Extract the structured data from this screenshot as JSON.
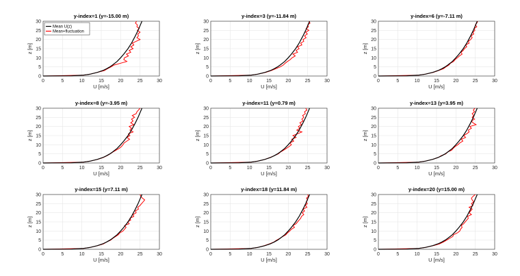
{
  "chart_data": {
    "type": "line",
    "layout": "3x3 grid",
    "grid": true,
    "legend": {
      "placement": "top-left",
      "panel": 0,
      "entries": [
        "Mean U(z)",
        "Mean+fluctuation"
      ]
    },
    "colors": {
      "mean": "#000000",
      "fluctuation": "#ff0000"
    },
    "xlabel": "U [m/s]",
    "ylabel": "z [m]",
    "xlim": [
      0,
      30
    ],
    "ylim": [
      0,
      30
    ],
    "xticks": [
      0,
      5,
      10,
      15,
      20,
      25,
      30
    ],
    "yticks": [
      0,
      5,
      10,
      15,
      20,
      25,
      30
    ],
    "mean_profile": {
      "z": [
        0,
        0.1,
        0.5,
        1,
        2,
        3,
        4,
        5,
        6,
        8,
        10,
        12,
        15,
        18,
        20,
        22,
        25,
        28,
        30
      ],
      "U": [
        0,
        7.3,
        10.4,
        12.1,
        14.0,
        15.4,
        16.4,
        17.2,
        17.9,
        19.1,
        20.0,
        20.8,
        21.9,
        22.8,
        23.3,
        23.8,
        24.5,
        25.1,
        25.5
      ]
    },
    "fluct_z": [
      0,
      0.5,
      1,
      2,
      3,
      4,
      5,
      6,
      7,
      8,
      9,
      10,
      11,
      12,
      13,
      14,
      15,
      16,
      17,
      18,
      19,
      20,
      21,
      22,
      23,
      24,
      25,
      26,
      27,
      28,
      29,
      30
    ],
    "panels": [
      {
        "title": "y-index=1 (y=-15.00 m)",
        "U": [
          0,
          10.4,
          12.1,
          14.0,
          15.8,
          16.6,
          17.5,
          18.3,
          20.0,
          21.6,
          20.8,
          21.0,
          22.0,
          21.5,
          22.6,
          22.2,
          23.2,
          22.6,
          23.4,
          23.0,
          24.0,
          25.0,
          24.2,
          24.6,
          24.4,
          25.0,
          24.3,
          24.8,
          24.2,
          24.3,
          23.8,
          24.1
        ]
      },
      {
        "title": "y-index=3 (y=-11.84 m)",
        "U": [
          0,
          10.4,
          12.1,
          14.2,
          15.6,
          16.8,
          17.9,
          18.7,
          19.2,
          19.8,
          20.5,
          21.0,
          21.8,
          21.2,
          22.4,
          22.0,
          22.8,
          22.4,
          23.5,
          23.2,
          24.0,
          23.8,
          24.6,
          24.2,
          24.9,
          24.5,
          25.3,
          24.6,
          25.2,
          25.0,
          25.6,
          25.3
        ]
      },
      {
        "title": "y-index=6 (y=-7.11 m)",
        "U": [
          0,
          10.4,
          12.1,
          14.2,
          15.5,
          16.8,
          17.4,
          18.2,
          18.6,
          19.4,
          19.8,
          20.4,
          20.9,
          21.6,
          21.3,
          21.9,
          22.2,
          22.8,
          22.5,
          23.4,
          23.2,
          23.8,
          24.2,
          23.9,
          24.6,
          24.4,
          24.9,
          24.7,
          25.4,
          25.0,
          25.4,
          25.6
        ]
      },
      {
        "title": "y-index=8 (y=-3.95 m)",
        "U": [
          0,
          10.4,
          12.1,
          14.1,
          15.5,
          16.5,
          17.3,
          18.0,
          18.8,
          19.6,
          20.2,
          20.6,
          20.9,
          21.6,
          22.3,
          21.6,
          22.4,
          22.0,
          23.2,
          22.4,
          22.8,
          22.2,
          23.4,
          22.6,
          23.2,
          22.8,
          23.6,
          23.0,
          24.0,
          24.2,
          24.6,
          25.0
        ]
      },
      {
        "title": "y-index=11 (y=0.79 m)",
        "U": [
          0,
          10.4,
          12.1,
          14.0,
          15.3,
          16.4,
          17.4,
          18.0,
          18.8,
          19.5,
          20.2,
          20.8,
          20.4,
          21.4,
          20.9,
          22.0,
          21.2,
          22.4,
          23.5,
          22.2,
          23.0,
          22.6,
          23.4,
          23.0,
          23.8,
          23.5,
          24.0,
          23.7,
          24.4,
          24.2,
          24.8,
          24.5
        ]
      },
      {
        "title": "y-index=13 (y=3.95 m)",
        "U": [
          0,
          10.4,
          12.1,
          14.0,
          15.4,
          16.2,
          17.4,
          17.8,
          18.9,
          19.3,
          19.8,
          20.5,
          21.0,
          21.8,
          21.4,
          22.5,
          22.0,
          22.8,
          23.4,
          23.2,
          24.0,
          23.6,
          25.2,
          24.4,
          24.0,
          24.8,
          24.2,
          24.6,
          24.2,
          24.8,
          24.5,
          24.9
        ]
      },
      {
        "title": "y-index=15 (y=7.11 m)",
        "U": [
          0,
          10.4,
          12.1,
          14.1,
          15.6,
          16.4,
          17.4,
          18.0,
          18.7,
          19.4,
          19.8,
          20.6,
          21.0,
          21.4,
          21.0,
          22.2,
          21.8,
          22.6,
          22.4,
          23.4,
          23.2,
          24.0,
          23.8,
          24.6,
          24.4,
          25.0,
          25.4,
          25.8,
          26.2,
          25.6,
          25.2,
          25.0
        ]
      },
      {
        "title": "y-index=18 (y=11.84 m)",
        "U": [
          0,
          10.4,
          12.1,
          13.8,
          15.2,
          16.3,
          17.0,
          17.8,
          18.6,
          19.4,
          19.8,
          20.4,
          20.8,
          21.6,
          21.2,
          22.0,
          22.4,
          22.8,
          23.2,
          23.4,
          24.0,
          23.6,
          24.2,
          23.8,
          24.8,
          24.4,
          24.9,
          24.6,
          25.0,
          24.7,
          25.2,
          25.0
        ]
      },
      {
        "title": "y-index=20 (y=15.00 m)",
        "U": [
          0,
          10.4,
          12.1,
          14.2,
          15.8,
          16.8,
          17.6,
          18.4,
          19.2,
          19.4,
          20.4,
          21.0,
          21.2,
          21.6,
          21.4,
          22.0,
          22.4,
          22.8,
          23.2,
          23.0,
          24.0,
          23.4,
          23.8,
          24.2,
          23.4,
          24.4,
          24.0,
          24.6,
          24.2,
          24.0,
          24.4,
          25.0
        ]
      }
    ]
  }
}
